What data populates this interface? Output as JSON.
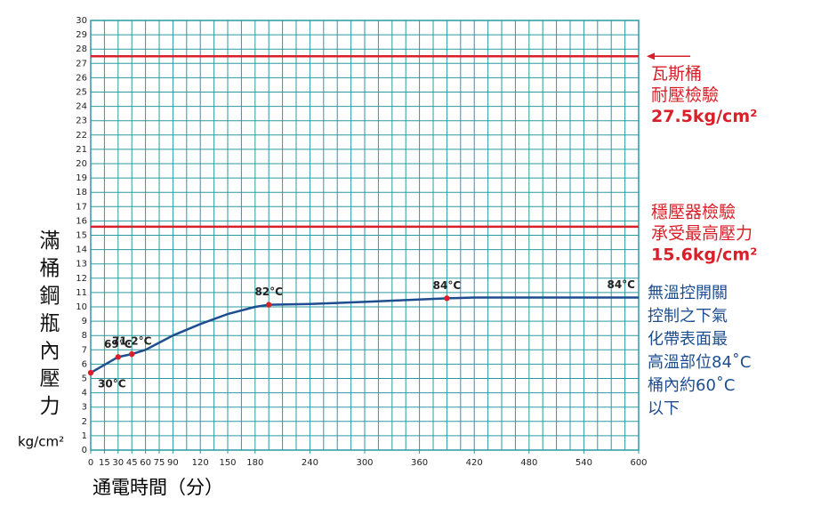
{
  "chart_data": {
    "type": "line",
    "x_label": "通電時間（分）",
    "y_label": "滿桶鋼瓶內壓力",
    "y_unit": "kg/cm²",
    "xlim": [
      0,
      600
    ],
    "ylim": [
      0,
      30
    ],
    "xticks": [
      0,
      15,
      30,
      45,
      60,
      75,
      90,
      120,
      150,
      180,
      240,
      300,
      360,
      420,
      480,
      540,
      600
    ],
    "yticks": [
      0,
      1,
      2,
      3,
      4,
      5,
      6,
      7,
      8,
      9,
      10,
      11,
      12,
      13,
      14,
      15,
      16,
      17,
      18,
      19,
      20,
      21,
      22,
      23,
      24,
      25,
      26,
      27,
      28,
      29,
      30
    ],
    "x_grid_step": 15,
    "grid": true,
    "grid_color": "#2b9aa0",
    "series": [
      {
        "color": "#1d4e8f",
        "x": [
          0,
          30,
          45,
          60,
          75,
          90,
          120,
          150,
          180,
          195,
          240,
          300,
          390,
          420,
          600
        ],
        "values": [
          5.4,
          6.5,
          6.7,
          7.0,
          7.5,
          8.0,
          8.8,
          9.5,
          10.0,
          10.15,
          10.2,
          10.35,
          10.6,
          10.65,
          10.65
        ]
      }
    ],
    "annotations": [
      {
        "text": "30°C",
        "x": 0,
        "y": 5.4,
        "marker": true
      },
      {
        "text": "69°C",
        "x": 30,
        "y": 6.5,
        "marker": true
      },
      {
        "text": "71.2°C",
        "x": 45,
        "y": 6.7,
        "marker": true
      },
      {
        "text": "82°C",
        "x": 195,
        "y": 10.15,
        "marker": true
      },
      {
        "text": "84°C",
        "x": 390,
        "y": 10.6,
        "marker": true
      },
      {
        "text": "84°C",
        "x": 600,
        "y": 10.65,
        "marker": false
      }
    ],
    "marker_color": "#d9202a",
    "reference_lines": [
      {
        "value": 27.5,
        "color": "#d9202a",
        "arrow": true,
        "label_lines": [
          "瓦斯桶",
          "耐壓檢驗",
          "27.5kg/cm²"
        ]
      },
      {
        "value": 15.6,
        "color": "#d9202a",
        "arrow": false,
        "label_lines": [
          "穩壓器檢驗",
          "承受最高壓力",
          "15.6kg/cm²"
        ]
      }
    ],
    "note": {
      "color": "#1d4e8f",
      "lines": [
        "無溫控開關",
        "控制之下氣",
        "化帶表面最",
        "高溫部位84˚C",
        "桶內約60˚C",
        "以下"
      ]
    }
  }
}
